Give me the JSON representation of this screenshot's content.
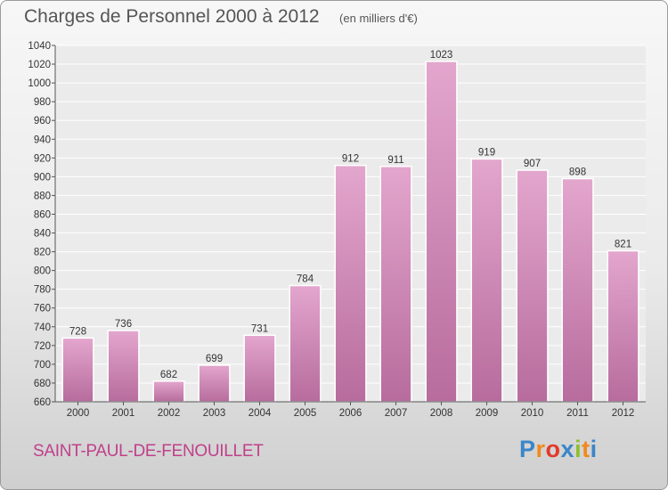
{
  "header": {
    "title": "Charges de Personnel 2000 à 2012",
    "subtitle": "(en milliers d'€)"
  },
  "footer": {
    "commune": "SAINT-PAUL-DE-FENOUILLET",
    "brand": "Proxiti"
  },
  "colors": {
    "bar_top": "#e3a6cd",
    "bar_bottom": "#b76c9d",
    "commune_text": "#c0408a",
    "brand_letters": [
      "#3a86c8",
      "#f08a1c",
      "#e23a2a",
      "#3a86c8",
      "#8dbf2e",
      "#f08a1c",
      "#3a86c8"
    ]
  },
  "chart_data": {
    "type": "bar",
    "title": "Charges de Personnel 2000 à 2012",
    "subtitle": "(en milliers d'€)",
    "categories": [
      "2000",
      "2001",
      "2002",
      "2003",
      "2004",
      "2005",
      "2006",
      "2007",
      "2008",
      "2009",
      "2010",
      "2011",
      "2012"
    ],
    "values": [
      728,
      736,
      682,
      699,
      731,
      784,
      912,
      911,
      1023,
      919,
      907,
      898,
      821
    ],
    "value_labels": [
      "728",
      "736",
      "682",
      "699",
      "731",
      "784",
      "912",
      "911",
      "1023",
      "919",
      "907",
      "898",
      "821"
    ],
    "ylim": [
      660,
      1040
    ],
    "yticks": [
      660,
      680,
      700,
      720,
      740,
      760,
      780,
      800,
      820,
      840,
      860,
      880,
      900,
      920,
      940,
      960,
      980,
      1000,
      1020,
      1040
    ],
    "grid": true,
    "xlabel": "",
    "ylabel": ""
  }
}
